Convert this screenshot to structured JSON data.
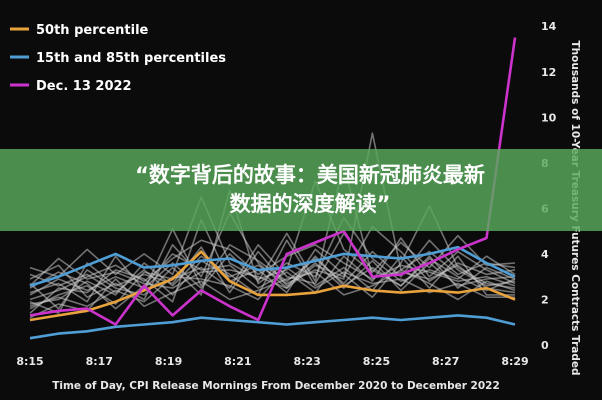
{
  "chart_data": {
    "type": "line",
    "xlabel": "Time of Day, CPI Release Mornings From December 2020 to December 2022",
    "ylabel": "Thousands of 10-Year Treasury Futures Contracts Traded",
    "x_ticks": [
      "8:15",
      "8:17",
      "8:19",
      "8:21",
      "8:23",
      "8:25",
      "8:27",
      "8:29"
    ],
    "y_ticks": [
      0,
      2,
      4,
      6,
      8,
      10,
      12,
      14
    ],
    "xlim": [
      0,
      14
    ],
    "ylim": [
      0,
      14.8
    ],
    "grid": false,
    "legend_position": "top-left",
    "series": [
      {
        "name": "50th percentile",
        "color": "#e8a33c",
        "values": [
          1.1,
          1.3,
          1.5,
          1.9,
          2.4,
          2.9,
          4.1,
          2.8,
          2.2,
          2.2,
          2.3,
          2.6,
          2.4,
          2.3,
          2.4,
          2.3,
          2.5,
          2.0
        ]
      },
      {
        "name": "15th and 85th percentiles",
        "color": "#4f9fd6",
        "values": [
          2.6,
          3.0,
          3.5,
          4.0,
          3.4,
          3.5,
          3.7,
          3.8,
          3.3,
          3.4,
          3.7,
          4.0,
          3.9,
          3.8,
          4.0,
          4.3,
          3.6,
          3.0
        ]
      },
      {
        "name": "",
        "color": "#4f9fd6",
        "values": [
          0.3,
          0.5,
          0.6,
          0.8,
          0.9,
          1.0,
          1.2,
          1.1,
          1.0,
          0.9,
          1.0,
          1.1,
          1.2,
          1.1,
          1.2,
          1.3,
          1.2,
          0.9
        ]
      },
      {
        "name": "Dec. 13 2022",
        "color": "#cc33cc",
        "values": [
          1.3,
          1.5,
          1.6,
          0.9,
          2.6,
          1.3,
          2.4,
          1.7,
          1.1,
          4.0,
          4.5,
          5.0,
          3.0,
          3.1,
          3.6,
          4.2,
          4.7,
          13.5
        ]
      }
    ],
    "background_series": [
      [
        2.0,
        2.4,
        3.0,
        3.5,
        2.8,
        3.8,
        4.6,
        4.2,
        3.1,
        3.9,
        4.4,
        3.6,
        2.9,
        3.5,
        3.2,
        2.8,
        3.0,
        2.6
      ],
      [
        1.6,
        2.2,
        2.6,
        1.8,
        3.2,
        2.9,
        3.4,
        2.5,
        4.4,
        3.0,
        2.7,
        4.9,
        3.3,
        2.6,
        3.8,
        3.0,
        2.4,
        2.9
      ],
      [
        2.9,
        3.5,
        2.1,
        2.7,
        2.0,
        4.4,
        3.0,
        5.8,
        3.6,
        2.5,
        3.5,
        3.0,
        5.2,
        4.1,
        2.8,
        3.6,
        3.1,
        3.3
      ],
      [
        1.2,
        1.8,
        1.5,
        2.9,
        1.7,
        2.3,
        2.8,
        2.0,
        2.4,
        2.9,
        3.2,
        2.2,
        2.6,
        3.3,
        2.7,
        2.0,
        2.8,
        2.4
      ],
      [
        3.4,
        3.0,
        4.2,
        3.1,
        4.0,
        3.1,
        6.5,
        3.6,
        2.9,
        3.3,
        7.2,
        4.2,
        3.2,
        4.5,
        3.4,
        4.8,
        3.5,
        3.6
      ],
      [
        2.3,
        2.7,
        1.9,
        3.9,
        2.4,
        5.1,
        2.6,
        4.4,
        3.7,
        2.8,
        3.8,
        2.7,
        4.1,
        3.0,
        4.6,
        3.3,
        2.6,
        2.8
      ],
      [
        1.8,
        2.0,
        2.8,
        2.2,
        3.6,
        2.6,
        3.9,
        3.1,
        2.2,
        4.6,
        2.6,
        3.4,
        2.4,
        3.9,
        2.5,
        3.9,
        2.2,
        2.2
      ],
      [
        2.7,
        1.6,
        3.3,
        2.5,
        2.2,
        3.4,
        2.2,
        6.8,
        2.7,
        3.6,
        3.0,
        5.6,
        3.8,
        2.8,
        3.3,
        2.9,
        3.9,
        3.1
      ],
      [
        1.4,
        2.5,
        2.3,
        3.3,
        2.9,
        1.9,
        5.5,
        2.8,
        3.3,
        2.3,
        4.2,
        3.1,
        2.1,
        3.6,
        6.1,
        3.4,
        2.7,
        2.5
      ],
      [
        2.5,
        3.2,
        2.7,
        1.6,
        2.6,
        4.0,
        3.3,
        3.5,
        2.5,
        3.2,
        2.3,
        3.9,
        2.8,
        4.7,
        3.0,
        4.1,
        3.3,
        2.7
      ],
      [
        1.9,
        1.4,
        3.6,
        2.6,
        3.1,
        2.7,
        4.3,
        2.3,
        4.1,
        2.6,
        3.6,
        2.5,
        3.7,
        2.4,
        3.6,
        2.6,
        2.9,
        3.0
      ],
      [
        2.2,
        2.9,
        2.4,
        3.0,
        2.5,
        3.6,
        2.5,
        4.0,
        2.8,
        4.9,
        2.8,
        7.9,
        3.0,
        3.2,
        2.9,
        3.5,
        2.5,
        2.3
      ],
      [
        3.1,
        2.6,
        3.1,
        2.3,
        3.3,
        2.2,
        3.7,
        3.0,
        3.5,
        2.7,
        3.3,
        2.9,
        9.3,
        3.3,
        4.1,
        3.1,
        3.6,
        3.4
      ],
      [
        1.7,
        2.1,
        1.7,
        2.4,
        1.9,
        3.0,
        2.9,
        2.6,
        2.0,
        3.4,
        2.5,
        3.2,
        2.7,
        2.9,
        2.3,
        2.7,
        2.1,
        2.1
      ],
      [
        2.6,
        3.8,
        2.9,
        3.2,
        2.7,
        2.5,
        3.2,
        3.3,
        3.0,
        2.5,
        3.9,
        2.6,
        3.4,
        2.6,
        3.9,
        2.5,
        3.4,
        2.9
      ]
    ]
  },
  "banner": {
    "line1": "“数字背后的故事：美国新冠肺炎最新",
    "line2": "数据的深度解读”"
  }
}
